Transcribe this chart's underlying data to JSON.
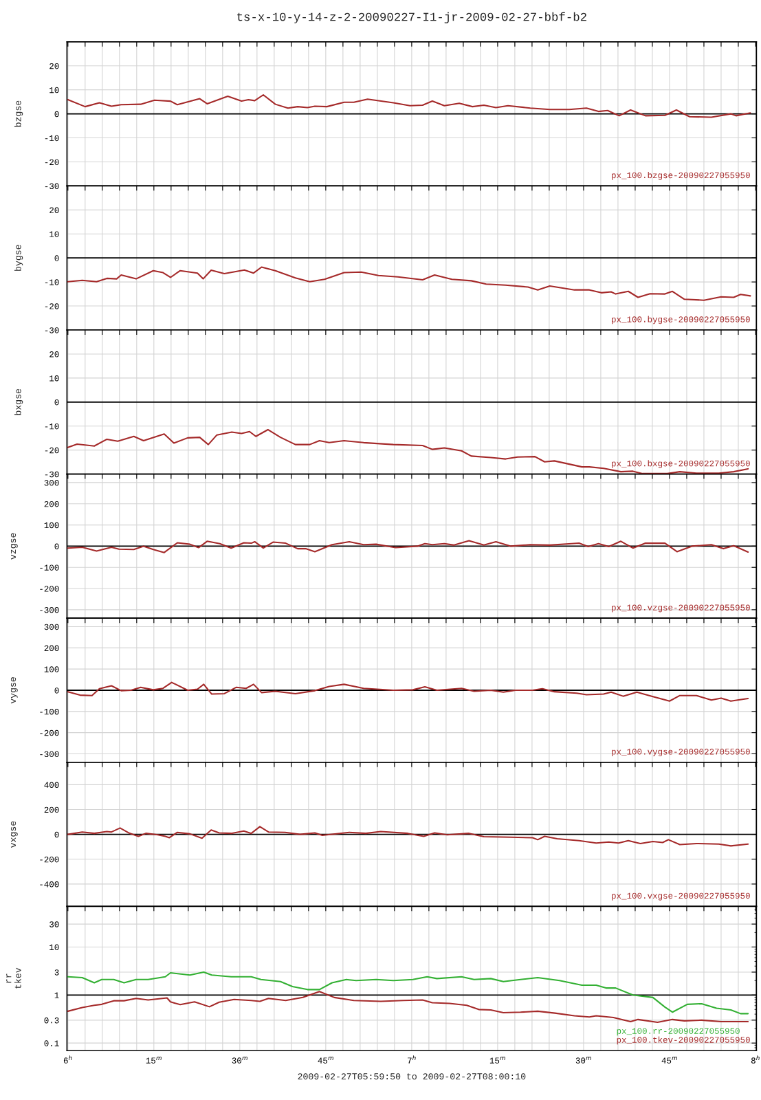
{
  "chart_data": [
    {
      "type": "line",
      "title": "ts-x-10-y-14-z-2-20090227-I1-jr-2009-02-27-bbf-b2",
      "ylabel": "bzgse",
      "xlim": [
        "2009-02-27T05:59:50",
        "2009-02-27T08:00:10"
      ],
      "ylim": [
        -30,
        30
      ],
      "yticks": [
        -30,
        -20,
        -10,
        0,
        10,
        20
      ],
      "tick_labels": "y",
      "grid": true,
      "legend": "bottom right",
      "ref_lines": [
        {
          "axis": "y",
          "value": 0,
          "color": "#000000"
        }
      ],
      "series": [
        {
          "name": "px_100.bzgse-20090227055950",
          "color": "#a52a2a",
          "x": [
            "2009-02-27T06:00:00",
            "2009-02-27T06:03:00",
            "2009-02-27T06:05:30",
            "2009-02-27T06:07:36",
            "2009-02-27T06:09:18",
            "2009-02-27T06:12:42",
            "2009-02-27T06:15:06",
            "2009-02-27T06:17:54",
            "2009-02-27T06:19:06",
            "2009-02-27T06:23:00",
            "2009-02-27T06:24:18",
            "2009-02-27T06:27:54",
            "2009-02-27T06:30:18",
            "2009-02-27T06:31:30",
            "2009-02-27T06:32:36",
            "2009-02-27T06:34:06",
            "2009-02-27T06:36:12",
            "2009-02-27T06:38:24",
            "2009-02-27T06:40:06",
            "2009-02-27T06:41:48",
            "2009-02-27T06:43:06",
            "2009-02-27T06:45:12",
            "2009-02-27T06:48:12",
            "2009-02-27T06:49:54",
            "2009-02-27T06:52:18",
            "2009-02-27T06:56:48",
            "2009-02-27T06:59:42",
            "2009-02-27T07:01:54",
            "2009-02-27T07:03:36",
            "2009-02-27T07:05:42",
            "2009-02-27T07:08:18",
            "2009-02-27T07:10:36",
            "2009-02-27T07:12:36",
            "2009-02-27T07:14:42",
            "2009-02-27T07:16:48",
            "2009-02-27T07:20:42",
            "2009-02-27T07:24:06",
            "2009-02-27T07:27:30",
            "2009-02-27T07:30:30",
            "2009-02-27T07:32:36",
            "2009-02-27T07:34:12",
            "2009-02-27T07:36:12",
            "2009-02-27T07:38:12",
            "2009-02-27T07:40:48",
            "2009-02-27T07:44:12",
            "2009-02-27T07:46:12",
            "2009-02-27T07:48:30",
            "2009-02-27T07:52:18",
            "2009-02-27T07:55:42",
            "2009-02-27T07:56:36",
            "2009-02-27T07:59:06"
          ],
          "values": [
            5.9,
            3.0,
            4.6,
            3.2,
            3.8,
            4.0,
            5.7,
            5.3,
            3.8,
            6.3,
            4.2,
            7.3,
            5.3,
            5.9,
            5.5,
            7.9,
            4.0,
            2.4,
            3.0,
            2.6,
            3.2,
            3.0,
            4.8,
            4.8,
            6.1,
            4.6,
            3.4,
            3.6,
            5.3,
            3.4,
            4.4,
            3.0,
            3.6,
            2.6,
            3.4,
            2.4,
            1.8,
            1.8,
            2.4,
            1.0,
            1.4,
            -0.8,
            1.6,
            -0.8,
            -0.6,
            1.6,
            -1.2,
            -1.4,
            0,
            -0.8,
            0.4
          ]
        }
      ]
    },
    {
      "type": "line",
      "ylabel": "bygse",
      "xlim": [
        "2009-02-27T05:59:50",
        "2009-02-27T08:00:10"
      ],
      "ylim": [
        -30,
        30
      ],
      "yticks": [
        -30,
        -20,
        -10,
        0,
        10,
        20
      ],
      "tick_labels": "y",
      "grid": true,
      "legend": "bottom right",
      "ref_lines": [
        {
          "axis": "y",
          "value": 0,
          "color": "#000000"
        }
      ],
      "series": [
        {
          "name": "px_100.bygse-20090227055950",
          "color": "#a52a2a",
          "x": [
            "2009-02-27T06:00:00",
            "2009-02-27T06:02:30",
            "2009-02-27T06:05:00",
            "2009-02-27T06:06:48",
            "2009-02-27T06:08:30",
            "2009-02-27T06:09:18",
            "2009-02-27T06:11:54",
            "2009-02-27T06:14:54",
            "2009-02-27T06:16:36",
            "2009-02-27T06:17:54",
            "2009-02-27T06:19:36",
            "2009-02-27T06:22:36",
            "2009-02-27T06:23:36",
            "2009-02-27T06:25:00",
            "2009-02-27T06:27:18",
            "2009-02-27T06:30:48",
            "2009-02-27T06:32:24",
            "2009-02-27T06:33:48",
            "2009-02-27T06:36:12",
            "2009-02-27T06:39:42",
            "2009-02-27T06:42:12",
            "2009-02-27T06:44:48",
            "2009-02-27T06:48:12",
            "2009-02-27T06:51:12",
            "2009-02-27T06:54:12",
            "2009-02-27T06:57:36",
            "2009-02-27T07:01:54",
            "2009-02-27T07:04:00",
            "2009-02-27T07:07:00",
            "2009-02-27T07:10:24",
            "2009-02-27T07:13:00",
            "2009-02-27T07:16:24",
            "2009-02-27T07:20:18",
            "2009-02-27T07:22:00",
            "2009-02-27T07:24:06",
            "2009-02-27T07:28:24",
            "2009-02-27T07:31:00",
            "2009-02-27T07:33:06",
            "2009-02-27T07:34:48",
            "2009-02-27T07:35:36",
            "2009-02-27T07:37:48",
            "2009-02-27T07:39:30",
            "2009-02-27T07:41:36",
            "2009-02-27T07:44:12",
            "2009-02-27T07:45:30",
            "2009-02-27T07:47:36",
            "2009-02-27T07:51:00",
            "2009-02-27T07:54:00",
            "2009-02-27T07:56:12",
            "2009-02-27T07:57:24",
            "2009-02-27T07:59:06"
          ],
          "values": [
            -9.9,
            -9.3,
            -9.9,
            -8.5,
            -8.7,
            -7.1,
            -8.7,
            -5.3,
            -6.1,
            -8.1,
            -5.3,
            -6.3,
            -8.7,
            -5.1,
            -6.5,
            -5.0,
            -6.3,
            -3.8,
            -5.3,
            -8.3,
            -9.9,
            -8.9,
            -6.1,
            -5.9,
            -7.3,
            -7.9,
            -9.1,
            -7.1,
            -8.9,
            -9.5,
            -10.9,
            -11.3,
            -12.1,
            -13.3,
            -11.7,
            -13.3,
            -13.3,
            -14.5,
            -14.1,
            -15,
            -13.9,
            -16.4,
            -14.9,
            -15,
            -13.9,
            -17.2,
            -17.6,
            -16.2,
            -16.4,
            -15.2,
            -15.8
          ]
        }
      ]
    },
    {
      "type": "line",
      "ylabel": "bxgse",
      "xlim": [
        "2009-02-27T05:59:50",
        "2009-02-27T08:00:10"
      ],
      "ylim": [
        -30,
        30
      ],
      "yticks": [
        -30,
        -20,
        -10,
        0,
        10,
        20
      ],
      "tick_labels": "y",
      "grid": true,
      "legend": "bottom right",
      "ref_lines": [
        {
          "axis": "y",
          "value": 0,
          "color": "#000000"
        }
      ],
      "series": [
        {
          "name": "px_100.bxgse-20090227055950",
          "color": "#a52a2a",
          "x": [
            "2009-02-27T06:00:00",
            "2009-02-27T06:01:36",
            "2009-02-27T06:04:36",
            "2009-02-27T06:06:48",
            "2009-02-27T06:08:42",
            "2009-02-27T06:11:30",
            "2009-02-27T06:13:12",
            "2009-02-27T06:16:48",
            "2009-02-27T06:18:30",
            "2009-02-27T06:20:54",
            "2009-02-27T06:23:00",
            "2009-02-27T06:24:30",
            "2009-02-27T06:26:00",
            "2009-02-27T06:28:36",
            "2009-02-27T06:30:18",
            "2009-02-27T06:31:42",
            "2009-02-27T06:32:48",
            "2009-02-27T06:34:54",
            "2009-02-27T06:37:06",
            "2009-02-27T06:39:42",
            "2009-02-27T06:42:12",
            "2009-02-27T06:43:54",
            "2009-02-27T06:45:36",
            "2009-02-27T06:48:12",
            "2009-02-27T06:51:36",
            "2009-02-27T06:56:48",
            "2009-02-27T07:01:54",
            "2009-02-27T07:03:36",
            "2009-02-27T07:05:42",
            "2009-02-27T07:08:42",
            "2009-02-27T07:10:24",
            "2009-02-27T07:13:48",
            "2009-02-27T07:16:24",
            "2009-02-27T07:18:30",
            "2009-02-27T07:21:30",
            "2009-02-27T07:23:12",
            "2009-02-27T07:24:54",
            "2009-02-27T07:29:42",
            "2009-02-27T07:31:00",
            "2009-02-27T07:33:30",
            "2009-02-27T07:36:30",
            "2009-02-27T07:38:36",
            "2009-02-27T07:40:18",
            "2009-02-27T07:44:36",
            "2009-02-27T07:46:48",
            "2009-02-27T07:49:42",
            "2009-02-27T07:53:36",
            "2009-02-27T07:56:12",
            "2009-02-27T07:58:42"
          ],
          "values": [
            -18.9,
            -17.5,
            -18.3,
            -15.5,
            -16.3,
            -14.3,
            -16.1,
            -13.3,
            -17.1,
            -14.9,
            -14.7,
            -17.7,
            -13.7,
            -12.5,
            -13.1,
            -12.3,
            -14.3,
            -11.5,
            -14.7,
            -17.7,
            -17.7,
            -16.1,
            -16.9,
            -16.1,
            -16.9,
            -17.7,
            -18.1,
            -19.7,
            -19.1,
            -20.3,
            -22.5,
            -23.1,
            -23.7,
            -22.9,
            -22.7,
            -24.9,
            -24.5,
            -27,
            -27,
            -27.6,
            -29,
            -28.8,
            -29.8,
            -29.8,
            -29,
            -29.6,
            -29.6,
            -29,
            -27.8
          ]
        }
      ]
    },
    {
      "type": "line",
      "ylabel": "vzgse",
      "xlim": [
        "2009-02-27T05:59:50",
        "2009-02-27T08:00:10"
      ],
      "ylim": [
        -340,
        340
      ],
      "yticks": [
        -300,
        -200,
        -100,
        0,
        100,
        200,
        300
      ],
      "tick_labels": "y",
      "grid": true,
      "legend": "bottom right",
      "ref_lines": [
        {
          "axis": "y",
          "value": 0,
          "color": "#000000"
        }
      ],
      "series": [
        {
          "name": "px_100.vzgse-20090227055950",
          "color": "#a52a2a",
          "x": [
            "2009-02-27T06:00:00",
            "2009-02-27T06:02:30",
            "2009-02-27T06:05:00",
            "2009-02-27T06:07:36",
            "2009-02-27T06:08:54",
            "2009-02-27T06:11:30",
            "2009-02-27T06:13:12",
            "2009-02-27T06:14:54",
            "2009-02-27T06:16:48",
            "2009-02-27T06:19:06",
            "2009-02-27T06:21:18",
            "2009-02-27T06:22:48",
            "2009-02-27T06:24:18",
            "2009-02-27T06:26:30",
            "2009-02-27T06:28:30",
            "2009-02-27T06:30:42",
            "2009-02-27T06:32:00",
            "2009-02-27T06:32:36",
            "2009-02-27T06:34:06",
            "2009-02-27T06:35:48",
            "2009-02-27T06:38:00",
            "2009-02-27T06:40:06",
            "2009-02-27T06:41:30",
            "2009-02-27T06:43:06",
            "2009-02-27T06:46:06",
            "2009-02-27T06:49:06",
            "2009-02-27T06:51:36",
            "2009-02-27T06:53:48",
            "2009-02-27T06:57:12",
            "2009-02-27T07:01:00",
            "2009-02-27T07:02:18",
            "2009-02-27T07:03:36",
            "2009-02-27T07:05:42",
            "2009-02-27T07:07:24",
            "2009-02-27T07:10:00",
            "2009-02-27T07:12:36",
            "2009-02-27T07:14:42",
            "2009-02-27T07:17:18",
            "2009-02-27T07:20:42",
            "2009-02-27T07:24:06",
            "2009-02-27T07:27:54",
            "2009-02-27T07:29:12",
            "2009-02-27T07:30:48",
            "2009-02-27T07:32:36",
            "2009-02-27T07:34:24",
            "2009-02-27T07:36:30",
            "2009-02-27T07:38:36",
            "2009-02-27T07:40:48",
            "2009-02-27T07:44:12",
            "2009-02-27T07:46:18",
            "2009-02-27T07:48:54",
            "2009-02-27T07:52:18",
            "2009-02-27T07:54:24",
            "2009-02-27T07:56:12",
            "2009-02-27T07:58:42"
          ],
          "values": [
            -9,
            -5,
            -23,
            -5,
            -14,
            -16,
            0,
            -16,
            -30,
            16,
            9,
            -7,
            23,
            12,
            -9,
            16,
            14,
            21,
            -9,
            19,
            14,
            -12,
            -12,
            -26,
            7,
            21,
            7,
            9,
            -7,
            0,
            12,
            7,
            12,
            5,
            26,
            5,
            21,
            0,
            7,
            5,
            12,
            14,
            -2,
            12,
            -2,
            23,
            -9,
            14,
            14,
            -26,
            0,
            7,
            -12,
            2,
            -28
          ]
        }
      ]
    },
    {
      "type": "line",
      "ylabel": "vygse",
      "xlim": [
        "2009-02-27T05:59:50",
        "2009-02-27T08:00:10"
      ],
      "ylim": [
        -340,
        340
      ],
      "yticks": [
        -300,
        -200,
        -100,
        0,
        100,
        200,
        300
      ],
      "tick_labels": "y",
      "grid": true,
      "legend": "bottom right",
      "ref_lines": [
        {
          "axis": "y",
          "value": 0,
          "color": "#000000"
        }
      ],
      "series": [
        {
          "name": "px_100.vygse-20090227055950",
          "color": "#a52a2a",
          "x": [
            "2009-02-27T06:00:00",
            "2009-02-27T06:02:06",
            "2009-02-27T06:04:12",
            "2009-02-27T06:05:30",
            "2009-02-27T06:07:36",
            "2009-02-27T06:09:18",
            "2009-02-27T06:11:00",
            "2009-02-27T06:12:42",
            "2009-02-27T06:14:54",
            "2009-02-27T06:16:36",
            "2009-02-27T06:18:06",
            "2009-02-27T06:20:54",
            "2009-02-27T06:22:36",
            "2009-02-27T06:23:42",
            "2009-02-27T06:25:06",
            "2009-02-27T06:27:18",
            "2009-02-27T06:29:24",
            "2009-02-27T06:31:06",
            "2009-02-27T06:32:24",
            "2009-02-27T06:33:48",
            "2009-02-27T06:36:12",
            "2009-02-27T06:39:42",
            "2009-02-27T06:43:06",
            "2009-02-27T06:45:36",
            "2009-02-27T06:48:12",
            "2009-02-27T06:51:36",
            "2009-02-27T06:56:48",
            "2009-02-27T07:00:12",
            "2009-02-27T07:02:18",
            "2009-02-27T07:04:24",
            "2009-02-27T07:08:42",
            "2009-02-27T07:10:54",
            "2009-02-27T07:13:48",
            "2009-02-27T07:16:00",
            "2009-02-27T07:18:06",
            "2009-02-27T07:21:06",
            "2009-02-27T07:22:48",
            "2009-02-27T07:24:54",
            "2009-02-27T07:28:48",
            "2009-02-27T07:30:30",
            "2009-02-27T07:33:30",
            "2009-02-27T07:34:48",
            "2009-02-27T07:36:54",
            "2009-02-27T07:39:18",
            "2009-02-27T07:42:06",
            "2009-02-27T07:45:00",
            "2009-02-27T07:46:48",
            "2009-02-27T07:49:42",
            "2009-02-27T07:52:18",
            "2009-02-27T07:54:00",
            "2009-02-27T07:55:42",
            "2009-02-27T07:58:42"
          ],
          "values": [
            -7,
            -23,
            -25,
            7,
            21,
            -2,
            0,
            14,
            2,
            9,
            37,
            0,
            5,
            28,
            -18,
            -16,
            14,
            9,
            28,
            -11,
            -5,
            -16,
            -2,
            18,
            28,
            9,
            0,
            2,
            16,
            0,
            9,
            -5,
            0,
            -9,
            0,
            0,
            7,
            -7,
            -14,
            -21,
            -18,
            -9,
            -28,
            -9,
            -30,
            -51,
            -25,
            -25,
            -46,
            -37,
            -51,
            -39
          ]
        }
      ]
    },
    {
      "type": "line",
      "ylabel": "vxgse",
      "xlim": [
        "2009-02-27T05:59:50",
        "2009-02-27T08:00:10"
      ],
      "ylim": [
        -580,
        580
      ],
      "yticks": [
        -400,
        -200,
        0,
        200,
        400
      ],
      "tick_labels": "y",
      "grid": true,
      "legend": "bottom right",
      "ref_lines": [
        {
          "axis": "y",
          "value": 0,
          "color": "#000000"
        }
      ],
      "series": [
        {
          "name": "px_100.vxgse-20090227055950",
          "color": "#a52a2a",
          "x": [
            "2009-02-27T06:00:00",
            "2009-02-27T06:02:30",
            "2009-02-27T06:04:36",
            "2009-02-27T06:06:48",
            "2009-02-27T06:07:36",
            "2009-02-27T06:09:06",
            "2009-02-27T06:10:36",
            "2009-02-27T06:12:18",
            "2009-02-27T06:13:36",
            "2009-02-27T06:15:42",
            "2009-02-27T06:17:00",
            "2009-02-27T06:17:42",
            "2009-02-27T06:19:06",
            "2009-02-27T06:21:18",
            "2009-02-27T06:23:24",
            "2009-02-27T06:25:00",
            "2009-02-27T06:26:24",
            "2009-02-27T06:28:30",
            "2009-02-27T06:30:42",
            "2009-02-27T06:32:00",
            "2009-02-27T06:33:30",
            "2009-02-27T06:35:00",
            "2009-02-27T06:37:54",
            "2009-02-27T06:40:30",
            "2009-02-27T06:43:06",
            "2009-02-27T06:44:24",
            "2009-02-27T06:49:06",
            "2009-02-27T06:52:00",
            "2009-02-27T06:54:36",
            "2009-02-27T06:59:18",
            "2009-02-27T07:02:06",
            "2009-02-27T07:04:00",
            "2009-02-27T07:06:12",
            "2009-02-27T07:10:00",
            "2009-02-27T07:12:36",
            "2009-02-27T07:17:18",
            "2009-02-27T07:21:06",
            "2009-02-27T07:22:00",
            "2009-02-27T07:23:12",
            "2009-02-27T07:25:24",
            "2009-02-27T07:29:12",
            "2009-02-27T07:32:12",
            "2009-02-27T07:34:24",
            "2009-02-27T07:36:06",
            "2009-02-27T07:37:48",
            "2009-02-27T07:39:54",
            "2009-02-27T07:42:06",
            "2009-02-27T07:43:48",
            "2009-02-27T07:44:48",
            "2009-02-27T07:46:48",
            "2009-02-27T07:49:42",
            "2009-02-27T07:53:36",
            "2009-02-27T07:55:42",
            "2009-02-27T07:58:42"
          ],
          "values": [
            0,
            19,
            8,
            23,
            19,
            51,
            12,
            -16,
            8,
            -4,
            -16,
            -27,
            16,
            4,
            -31,
            35,
            12,
            8,
            27,
            8,
            62,
            19,
            16,
            0,
            12,
            -8,
            16,
            8,
            23,
            8,
            -16,
            12,
            -4,
            8,
            -19,
            -23,
            -27,
            -43,
            -16,
            -35,
            -51,
            -70,
            -62,
            -70,
            -51,
            -74,
            -58,
            -66,
            -43,
            -82,
            -74,
            -78,
            -93,
            -78
          ]
        }
      ]
    },
    {
      "type": "line",
      "ylabel": "rr\ntkev",
      "xlabel": "2009-02-27T05:59:50 to 2009-02-27T08:00:10",
      "log": "y",
      "xlim": [
        "2009-02-27T05:59:50",
        "2009-02-27T08:00:10"
      ],
      "ylim": [
        0.07,
        70
      ],
      "yticks": [
        0.1,
        0.3,
        1,
        3,
        10,
        30
      ],
      "grid": true,
      "legend": "bottom right",
      "xticks": [
        {
          "value": "2009-02-27T06:00",
          "label": "6$^{h}$"
        },
        {
          "value": "2009-02-27T06:03",
          "label": null
        },
        {
          "value": "2009-02-27T06:06",
          "label": null
        },
        {
          "value": "2009-02-27T06:09",
          "label": null
        },
        {
          "value": "2009-02-27T06:12",
          "label": null
        },
        {
          "value": "2009-02-27T06:15",
          "label": "15$^{m}$"
        },
        {
          "value": "2009-02-27T06:18",
          "label": null
        },
        {
          "value": "2009-02-27T06:21",
          "label": null
        },
        {
          "value": "2009-02-27T06:24",
          "label": null
        },
        {
          "value": "2009-02-27T06:27",
          "label": null
        },
        {
          "value": "2009-02-27T06:30",
          "label": "30$^{m}$"
        },
        {
          "value": "2009-02-27T06:33",
          "label": null
        },
        {
          "value": "2009-02-27T06:36",
          "label": null
        },
        {
          "value": "2009-02-27T06:39",
          "label": null
        },
        {
          "value": "2009-02-27T06:42",
          "label": null
        },
        {
          "value": "2009-02-27T06:45",
          "label": "45$^{m}$"
        },
        {
          "value": "2009-02-27T06:48",
          "label": null
        },
        {
          "value": "2009-02-27T06:51",
          "label": null
        },
        {
          "value": "2009-02-27T06:54",
          "label": null
        },
        {
          "value": "2009-02-27T06:57",
          "label": null
        },
        {
          "value": "2009-02-27T07:00",
          "label": "7$^{h}$"
        },
        {
          "value": "2009-02-27T07:03",
          "label": null
        },
        {
          "value": "2009-02-27T07:06",
          "label": null
        },
        {
          "value": "2009-02-27T07:09",
          "label": null
        },
        {
          "value": "2009-02-27T07:12",
          "label": null
        },
        {
          "value": "2009-02-27T07:15",
          "label": "15$^{m}$"
        },
        {
          "value": "2009-02-27T07:18",
          "label": null
        },
        {
          "value": "2009-02-27T07:21",
          "label": null
        },
        {
          "value": "2009-02-27T07:24",
          "label": null
        },
        {
          "value": "2009-02-27T07:27",
          "label": null
        },
        {
          "value": "2009-02-27T07:30",
          "label": "30$^{m}$"
        },
        {
          "value": "2009-02-27T07:33",
          "label": null
        },
        {
          "value": "2009-02-27T07:36",
          "label": null
        },
        {
          "value": "2009-02-27T07:39",
          "label": null
        },
        {
          "value": "2009-02-27T07:42",
          "label": null
        },
        {
          "value": "2009-02-27T07:45",
          "label": "45$^{m}$"
        },
        {
          "value": "2009-02-27T07:48",
          "label": null
        },
        {
          "value": "2009-02-27T07:51",
          "label": null
        },
        {
          "value": "2009-02-27T07:54",
          "label": null
        },
        {
          "value": "2009-02-27T07:57",
          "label": null
        },
        {
          "value": "2009-02-27T08:00",
          "label": "8$^{h}$"
        }
      ],
      "ref_lines": [
        {
          "axis": "y",
          "value": 1,
          "color": "#000000"
        }
      ],
      "series": [
        {
          "name": "px_100.rr-20090227055950",
          "color": "#33b033",
          "x": [
            "2009-02-27T06:00:00",
            "2009-02-27T06:02:30",
            "2009-02-27T06:04:36",
            "2009-02-27T06:05:54",
            "2009-02-27T06:08:00",
            "2009-02-27T06:09:48",
            "2009-02-27T06:11:54",
            "2009-02-27T06:14:00",
            "2009-02-27T06:17:00",
            "2009-02-27T06:17:54",
            "2009-02-27T06:21:18",
            "2009-02-27T06:23:42",
            "2009-02-27T06:25:06",
            "2009-02-27T06:28:30",
            "2009-02-27T06:32:00",
            "2009-02-27T06:33:42",
            "2009-02-27T06:37:06",
            "2009-02-27T06:39:12",
            "2009-02-27T06:41:48",
            "2009-02-27T06:43:54",
            "2009-02-27T06:46:06",
            "2009-02-27T06:48:36",
            "2009-02-27T06:50:18",
            "2009-02-27T06:53:48",
            "2009-02-27T06:56:48",
            "2009-02-27T07:00:12",
            "2009-02-27T07:02:42",
            "2009-02-27T07:04:24",
            "2009-02-27T07:08:42",
            "2009-02-27T07:10:54",
            "2009-02-27T07:13:48",
            "2009-02-27T07:16:00",
            "2009-02-27T07:19:00",
            "2009-02-27T07:22:00",
            "2009-02-27T07:25:48",
            "2009-02-27T07:29:42",
            "2009-02-27T07:32:12",
            "2009-02-27T07:33:54",
            "2009-02-27T07:35:36",
            "2009-02-27T07:38:36",
            "2009-02-27T07:42:06",
            "2009-02-27T07:44:12",
            "2009-02-27T07:45:30",
            "2009-02-27T07:48:06",
            "2009-02-27T07:50:36",
            "2009-02-27T07:53:12",
            "2009-02-27T07:55:42",
            "2009-02-27T07:57:24",
            "2009-02-27T07:58:42"
          ],
          "values": [
            2.4,
            2.3,
            1.8,
            2.1,
            2.1,
            1.8,
            2.1,
            2.1,
            2.4,
            2.9,
            2.6,
            3.0,
            2.6,
            2.4,
            2.4,
            2.1,
            1.9,
            1.5,
            1.3,
            1.3,
            1.8,
            2.1,
            2.0,
            2.1,
            2.0,
            2.1,
            2.4,
            2.2,
            2.4,
            2.1,
            2.2,
            1.9,
            2.1,
            2.3,
            2.0,
            1.6,
            1.6,
            1.4,
            1.4,
            1.0,
            0.89,
            0.56,
            0.44,
            0.64,
            0.66,
            0.53,
            0.49,
            0.41,
            0.41
          ]
        },
        {
          "name": "px_100.tkev-20090227055950",
          "color": "#a52a2a",
          "x": [
            "2009-02-27T06:00:00",
            "2009-02-27T06:02:30",
            "2009-02-27T06:04:36",
            "2009-02-27T06:05:54",
            "2009-02-27T06:08:00",
            "2009-02-27T06:09:48",
            "2009-02-27T06:11:54",
            "2009-02-27T06:14:00",
            "2009-02-27T06:17:18",
            "2009-02-27T06:17:54",
            "2009-02-27T06:19:36",
            "2009-02-27T06:22:06",
            "2009-02-27T06:24:42",
            "2009-02-27T06:26:24",
            "2009-02-27T06:29:00",
            "2009-02-27T06:32:00",
            "2009-02-27T06:33:30",
            "2009-02-27T06:35:00",
            "2009-02-27T06:38:00",
            "2009-02-27T06:41:00",
            "2009-02-27T06:43:54",
            "2009-02-27T06:46:30",
            "2009-02-27T06:49:54",
            "2009-02-27T06:54:36",
            "2009-02-27T06:58:30",
            "2009-02-27T07:01:54",
            "2009-02-27T07:03:36",
            "2009-02-27T07:06:36",
            "2009-02-27T07:09:36",
            "2009-02-27T07:11:42",
            "2009-02-27T07:13:48",
            "2009-02-27T07:16:00",
            "2009-02-27T07:19:00",
            "2009-02-27T07:22:00",
            "2009-02-27T07:25:00",
            "2009-02-27T07:28:24",
            "2009-02-27T07:31:00",
            "2009-02-27T07:32:12",
            "2009-02-27T07:35:12",
            "2009-02-27T07:38:12",
            "2009-02-27T07:39:30",
            "2009-02-27T07:42:54",
            "2009-02-27T07:45:30",
            "2009-02-27T07:47:36",
            "2009-02-27T07:50:36",
            "2009-02-27T07:54:00",
            "2009-02-27T07:58:42"
          ],
          "values": [
            0.46,
            0.55,
            0.61,
            0.64,
            0.76,
            0.76,
            0.85,
            0.79,
            0.87,
            0.72,
            0.63,
            0.72,
            0.57,
            0.71,
            0.81,
            0.77,
            0.74,
            0.85,
            0.77,
            0.89,
            1.18,
            0.89,
            0.77,
            0.74,
            0.77,
            0.79,
            0.69,
            0.67,
            0.61,
            0.5,
            0.49,
            0.43,
            0.44,
            0.46,
            0.42,
            0.37,
            0.35,
            0.37,
            0.34,
            0.28,
            0.31,
            0.27,
            0.31,
            0.29,
            0.3,
            0.28,
            0.28
          ]
        }
      ]
    }
  ]
}
